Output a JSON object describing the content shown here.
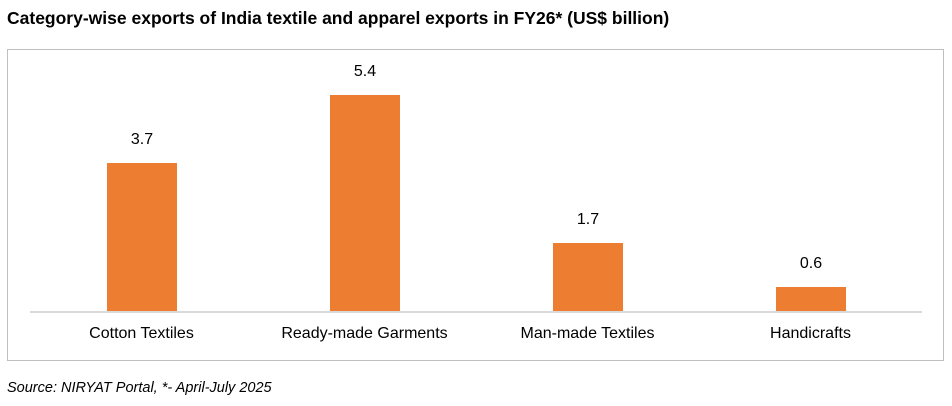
{
  "title": "Category-wise exports of India textile and apparel exports in FY26* (US$ billion)",
  "source": "Source: NIRYAT Portal, *- April-July 2025",
  "colors": {
    "bar": "#ed7d31",
    "axis": "#d9d9d9",
    "frame": "#bfbfbf"
  },
  "chart_data": {
    "type": "bar",
    "title": "Category-wise exports of India textile and apparel exports in FY26* (US$ billion)",
    "categories": [
      "Cotton Textiles",
      "Ready-made Garments",
      "Man-made Textiles",
      "Handicrafts"
    ],
    "values": [
      3.7,
      5.4,
      1.7,
      0.6
    ],
    "labels": [
      "3.7",
      "5.4",
      "1.7",
      "0.6"
    ],
    "xlabel": "",
    "ylabel": "US$ billion",
    "ylim": [
      0,
      6.5
    ],
    "grid": false,
    "legend": null,
    "data_labels": true,
    "footnote": "Source: NIRYAT Portal, *- April-July 2025"
  }
}
